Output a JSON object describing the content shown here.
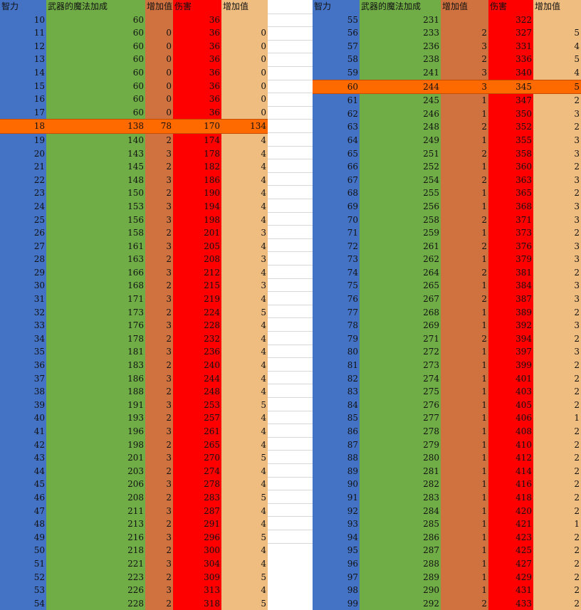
{
  "left_table": {
    "headers": [
      "智力",
      "武器的魔法加成",
      "增加值",
      "伤害",
      "增加值"
    ],
    "highlight_row": 8,
    "rows": [
      [
        "10",
        "60",
        "",
        "36",
        ""
      ],
      [
        "11",
        "60",
        "0",
        "36",
        "0"
      ],
      [
        "12",
        "60",
        "0",
        "36",
        "0"
      ],
      [
        "13",
        "60",
        "0",
        "36",
        "0"
      ],
      [
        "14",
        "60",
        "0",
        "36",
        "0"
      ],
      [
        "15",
        "60",
        "0",
        "36",
        "0"
      ],
      [
        "16",
        "60",
        "0",
        "36",
        "0"
      ],
      [
        "17",
        "60",
        "0",
        "36",
        "0"
      ],
      [
        "18",
        "138",
        "78",
        "170",
        "134"
      ],
      [
        "19",
        "140",
        "2",
        "174",
        "4"
      ],
      [
        "20",
        "143",
        "3",
        "178",
        "4"
      ],
      [
        "21",
        "145",
        "2",
        "182",
        "4"
      ],
      [
        "22",
        "148",
        "3",
        "186",
        "4"
      ],
      [
        "23",
        "150",
        "2",
        "190",
        "4"
      ],
      [
        "24",
        "153",
        "3",
        "194",
        "4"
      ],
      [
        "25",
        "156",
        "3",
        "198",
        "4"
      ],
      [
        "26",
        "158",
        "2",
        "201",
        "3"
      ],
      [
        "27",
        "161",
        "3",
        "205",
        "4"
      ],
      [
        "28",
        "163",
        "2",
        "208",
        "3"
      ],
      [
        "29",
        "166",
        "3",
        "212",
        "4"
      ],
      [
        "30",
        "168",
        "2",
        "215",
        "3"
      ],
      [
        "31",
        "171",
        "3",
        "219",
        "4"
      ],
      [
        "32",
        "173",
        "2",
        "224",
        "5"
      ],
      [
        "33",
        "176",
        "3",
        "228",
        "4"
      ],
      [
        "34",
        "178",
        "2",
        "232",
        "4"
      ],
      [
        "35",
        "181",
        "3",
        "236",
        "4"
      ],
      [
        "36",
        "183",
        "2",
        "240",
        "4"
      ],
      [
        "37",
        "186",
        "3",
        "244",
        "4"
      ],
      [
        "38",
        "188",
        "2",
        "248",
        "4"
      ],
      [
        "39",
        "191",
        "3",
        "253",
        "5"
      ],
      [
        "40",
        "193",
        "2",
        "257",
        "4"
      ],
      [
        "41",
        "196",
        "3",
        "261",
        "4"
      ],
      [
        "42",
        "198",
        "2",
        "265",
        "4"
      ],
      [
        "43",
        "201",
        "3",
        "270",
        "5"
      ],
      [
        "44",
        "203",
        "2",
        "274",
        "4"
      ],
      [
        "45",
        "206",
        "3",
        "278",
        "4"
      ],
      [
        "46",
        "208",
        "2",
        "283",
        "5"
      ],
      [
        "47",
        "211",
        "3",
        "287",
        "4"
      ],
      [
        "48",
        "213",
        "2",
        "291",
        "4"
      ],
      [
        "49",
        "216",
        "3",
        "296",
        "5"
      ],
      [
        "50",
        "218",
        "2",
        "300",
        "4"
      ],
      [
        "51",
        "221",
        "3",
        "304",
        "4"
      ],
      [
        "52",
        "223",
        "2",
        "309",
        "5"
      ],
      [
        "53",
        "226",
        "3",
        "313",
        "4"
      ],
      [
        "54",
        "228",
        "2",
        "318",
        "5"
      ]
    ]
  },
  "right_table": {
    "headers": [
      "智力",
      "武器的魔法加成",
      "增加值",
      "伤害",
      "增加值"
    ],
    "highlight_row": 5,
    "rows": [
      [
        "55",
        "231",
        "",
        "322",
        ""
      ],
      [
        "56",
        "233",
        "2",
        "327",
        "5"
      ],
      [
        "57",
        "236",
        "3",
        "331",
        "4"
      ],
      [
        "58",
        "238",
        "2",
        "336",
        "5"
      ],
      [
        "59",
        "241",
        "3",
        "340",
        "4"
      ],
      [
        "60",
        "244",
        "3",
        "345",
        "5"
      ],
      [
        "61",
        "245",
        "1",
        "347",
        "2"
      ],
      [
        "62",
        "246",
        "1",
        "350",
        "3"
      ],
      [
        "63",
        "248",
        "2",
        "352",
        "2"
      ],
      [
        "64",
        "249",
        "1",
        "355",
        "3"
      ],
      [
        "65",
        "251",
        "2",
        "358",
        "3"
      ],
      [
        "66",
        "252",
        "1",
        "360",
        "2"
      ],
      [
        "67",
        "254",
        "2",
        "363",
        "3"
      ],
      [
        "68",
        "255",
        "1",
        "365",
        "2"
      ],
      [
        "69",
        "256",
        "1",
        "368",
        "3"
      ],
      [
        "70",
        "258",
        "2",
        "371",
        "3"
      ],
      [
        "71",
        "259",
        "1",
        "373",
        "2"
      ],
      [
        "72",
        "261",
        "2",
        "376",
        "3"
      ],
      [
        "73",
        "262",
        "1",
        "379",
        "3"
      ],
      [
        "74",
        "264",
        "2",
        "381",
        "2"
      ],
      [
        "75",
        "265",
        "1",
        "384",
        "3"
      ],
      [
        "76",
        "267",
        "2",
        "387",
        "3"
      ],
      [
        "77",
        "268",
        "1",
        "389",
        "2"
      ],
      [
        "78",
        "269",
        "1",
        "392",
        "3"
      ],
      [
        "79",
        "271",
        "2",
        "394",
        "2"
      ],
      [
        "80",
        "272",
        "1",
        "397",
        "3"
      ],
      [
        "81",
        "273",
        "1",
        "399",
        "2"
      ],
      [
        "82",
        "274",
        "1",
        "401",
        "2"
      ],
      [
        "83",
        "275",
        "1",
        "403",
        "2"
      ],
      [
        "84",
        "276",
        "1",
        "405",
        "2"
      ],
      [
        "85",
        "277",
        "1",
        "406",
        "1"
      ],
      [
        "86",
        "278",
        "1",
        "408",
        "2"
      ],
      [
        "87",
        "279",
        "1",
        "410",
        "2"
      ],
      [
        "88",
        "280",
        "1",
        "412",
        "2"
      ],
      [
        "89",
        "281",
        "1",
        "414",
        "2"
      ],
      [
        "90",
        "282",
        "1",
        "416",
        "2"
      ],
      [
        "91",
        "283",
        "1",
        "418",
        "2"
      ],
      [
        "92",
        "284",
        "1",
        "420",
        "2"
      ],
      [
        "93",
        "285",
        "1",
        "421",
        "1"
      ],
      [
        "94",
        "286",
        "1",
        "423",
        "2"
      ],
      [
        "95",
        "287",
        "1",
        "425",
        "2"
      ],
      [
        "96",
        "288",
        "1",
        "427",
        "2"
      ],
      [
        "97",
        "289",
        "1",
        "429",
        "2"
      ],
      [
        "98",
        "290",
        "1",
        "431",
        "2"
      ],
      [
        "99",
        "292",
        "2",
        "433",
        "2"
      ]
    ]
  },
  "colors": {
    "intelligence": "#4472c4",
    "weapon_bonus": "#70ad47",
    "bonus_increase": "#cf7240",
    "damage": "#ff0000",
    "damage_increase": "#f0bd80",
    "highlight": "#ff6a00"
  }
}
